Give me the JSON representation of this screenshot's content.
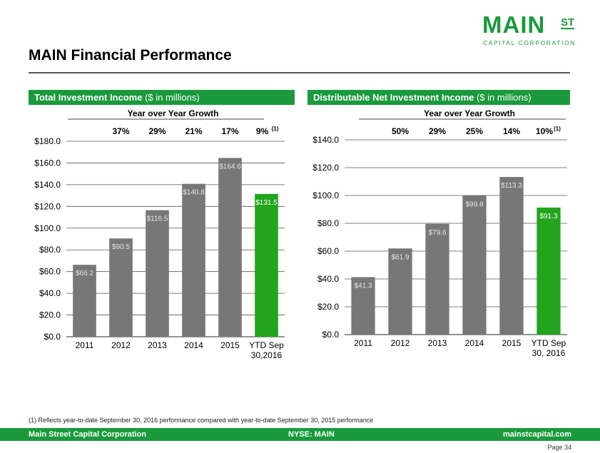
{
  "logo": {
    "main": "MAIN",
    "st": "ST",
    "sub": "CAPITAL CORPORATION"
  },
  "page_title": "MAIN Financial Performance",
  "panels": [
    {
      "header_bold": "Total Investment Income",
      "header_normal": " ($ in millions)"
    },
    {
      "header_bold": "Distributable Net Investment Income",
      "header_normal": " ($ in millions)"
    }
  ],
  "chart_data": [
    {
      "type": "bar",
      "categories": [
        "2011",
        "2012",
        "2013",
        "2014",
        "2015",
        "YTD Sep\n30,2016"
      ],
      "values": [
        66.2,
        90.5,
        116.5,
        140.8,
        164.6,
        131.5
      ],
      "data_labels": [
        "$66.2",
        "$90.5",
        "$116.5",
        "$140.8",
        "$164.6",
        "$131.5"
      ],
      "ylim": [
        0,
        180
      ],
      "y_ticks": [
        0,
        20,
        40,
        60,
        80,
        100,
        120,
        140,
        160,
        180
      ],
      "y_tick_labels": [
        "$0.0",
        "$20.0",
        "$40.0",
        "$60.0",
        "$80.0",
        "$100.0",
        "$120.0",
        "$140.0",
        "$160.0",
        "$180.0"
      ],
      "grid": true,
      "bar_colors": [
        "#777777",
        "#777777",
        "#777777",
        "#777777",
        "#777777",
        "#22a51c"
      ],
      "growth_title": "Year over Year Growth",
      "growth": [
        "37%",
        "29%",
        "21%",
        "17%",
        "9%"
      ],
      "growth_superscript": "(1)"
    },
    {
      "type": "bar",
      "categories": [
        "2011",
        "2012",
        "2013",
        "2014",
        "2015",
        "YTD Sep\n30, 2016"
      ],
      "values": [
        41.3,
        61.9,
        79.6,
        99.8,
        113.3,
        91.3
      ],
      "data_labels": [
        "$41.3",
        "$61.9",
        "$79.6",
        "$99.8",
        "$113.3",
        "$91.3"
      ],
      "ylim": [
        0,
        140
      ],
      "y_ticks": [
        0,
        20,
        40,
        60,
        80,
        100,
        120,
        140
      ],
      "y_tick_labels": [
        "$0.0",
        "$20.0",
        "$40.0",
        "$60.0",
        "$80.0",
        "$100.0",
        "$120.0",
        "$140.0"
      ],
      "grid": true,
      "bar_colors": [
        "#777777",
        "#777777",
        "#777777",
        "#777777",
        "#777777",
        "#22a51c"
      ],
      "growth_title": "Year over Year Growth",
      "growth": [
        "50%",
        "29%",
        "25%",
        "14%",
        "10%"
      ],
      "growth_superscript": "(1)"
    }
  ],
  "footnote": "(1) Reflects year-to-date September 30, 2016 performance compared with year-to-date September 30, 2015 performance",
  "footer": {
    "left": "Main Street Capital Corporation",
    "center": "NYSE: MAIN",
    "right": "mainstcapital.com"
  },
  "page_number": "Page  34"
}
